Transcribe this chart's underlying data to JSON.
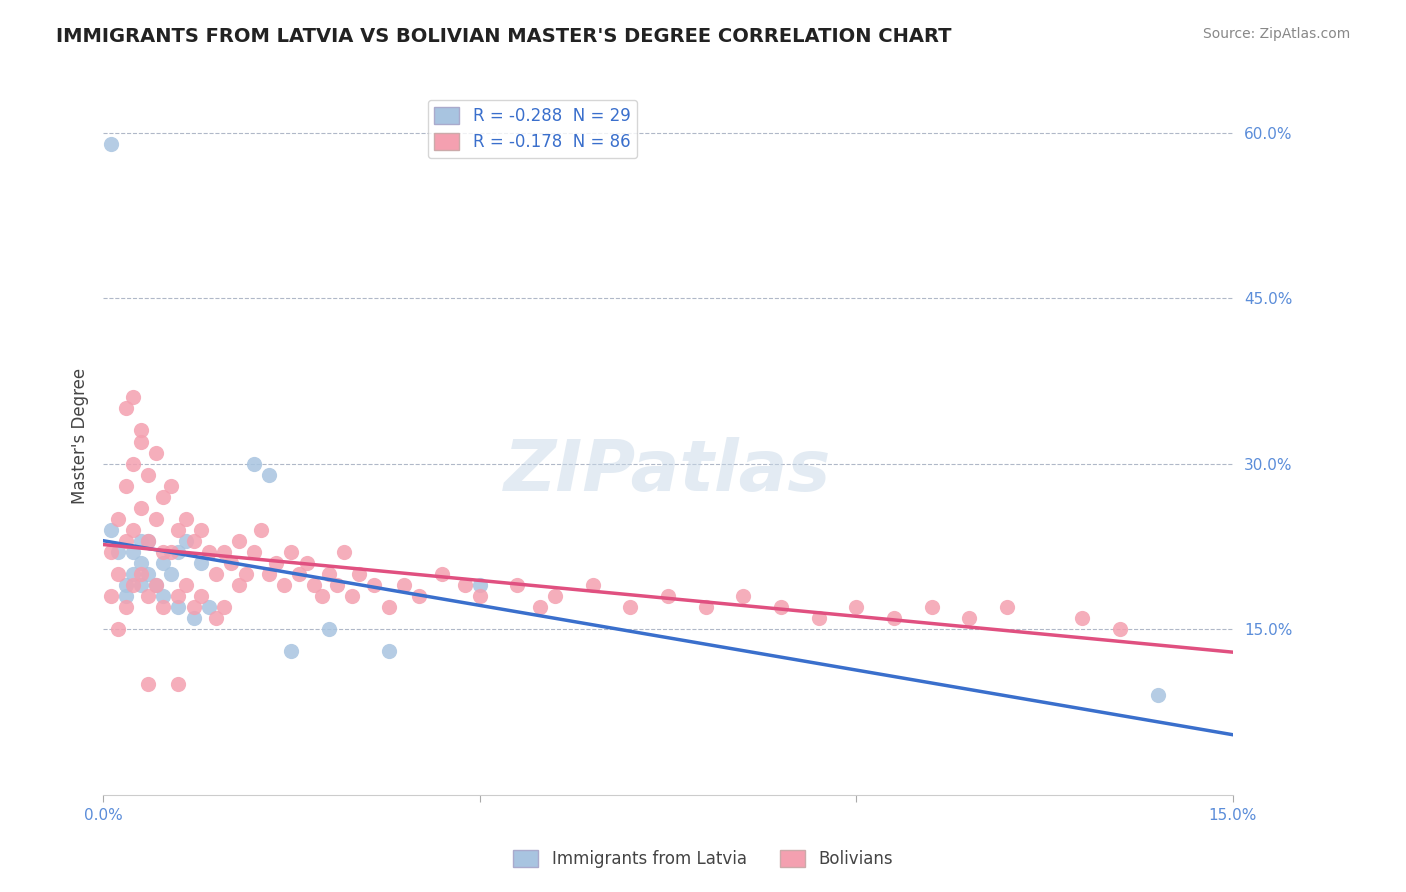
{
  "title": "IMMIGRANTS FROM LATVIA VS BOLIVIAN MASTER'S DEGREE CORRELATION CHART",
  "source_text": "Source: ZipAtlas.com",
  "xlabel_bottom": "",
  "ylabel_left": "Master's Degree",
  "x_min": 0.0,
  "x_max": 0.15,
  "y_min": 0.0,
  "y_max": 0.65,
  "x_ticks": [
    0.0,
    0.05,
    0.1,
    0.15
  ],
  "x_tick_labels": [
    "0.0%",
    "",
    "",
    "15.0%"
  ],
  "y_ticks_right": [
    0.15,
    0.3,
    0.45,
    0.6
  ],
  "y_tick_labels_right": [
    "15.0%",
    "30.0%",
    "45.0%",
    "60.0%"
  ],
  "blue_R": -0.288,
  "blue_N": 29,
  "pink_R": -0.178,
  "pink_N": 86,
  "blue_color": "#a8c4e0",
  "pink_color": "#f4a0b0",
  "blue_line_color": "#3a6fcc",
  "pink_line_color": "#e05080",
  "legend_label_blue": "Immigrants from Latvia",
  "legend_label_pink": "Bolivians",
  "watermark": "ZIPatlas",
  "blue_scatter_x": [
    0.001,
    0.002,
    0.003,
    0.003,
    0.004,
    0.004,
    0.005,
    0.005,
    0.005,
    0.006,
    0.006,
    0.007,
    0.008,
    0.008,
    0.009,
    0.01,
    0.01,
    0.011,
    0.012,
    0.013,
    0.014,
    0.02,
    0.022,
    0.025,
    0.03,
    0.038,
    0.05,
    0.14,
    0.001
  ],
  "blue_scatter_y": [
    0.24,
    0.22,
    0.19,
    0.18,
    0.22,
    0.2,
    0.23,
    0.21,
    0.19,
    0.2,
    0.23,
    0.19,
    0.21,
    0.18,
    0.2,
    0.17,
    0.22,
    0.23,
    0.16,
    0.21,
    0.17,
    0.3,
    0.29,
    0.13,
    0.15,
    0.13,
    0.19,
    0.09,
    0.59
  ],
  "pink_scatter_x": [
    0.001,
    0.001,
    0.002,
    0.002,
    0.002,
    0.003,
    0.003,
    0.003,
    0.004,
    0.004,
    0.004,
    0.005,
    0.005,
    0.005,
    0.006,
    0.006,
    0.006,
    0.007,
    0.007,
    0.007,
    0.008,
    0.008,
    0.008,
    0.009,
    0.009,
    0.01,
    0.01,
    0.011,
    0.011,
    0.012,
    0.012,
    0.013,
    0.013,
    0.014,
    0.015,
    0.015,
    0.016,
    0.016,
    0.017,
    0.018,
    0.018,
    0.019,
    0.02,
    0.021,
    0.022,
    0.023,
    0.024,
    0.025,
    0.026,
    0.027,
    0.028,
    0.029,
    0.03,
    0.031,
    0.032,
    0.033,
    0.034,
    0.036,
    0.038,
    0.04,
    0.042,
    0.045,
    0.048,
    0.05,
    0.055,
    0.058,
    0.06,
    0.065,
    0.07,
    0.075,
    0.08,
    0.085,
    0.09,
    0.095,
    0.1,
    0.105,
    0.11,
    0.115,
    0.12,
    0.13,
    0.135,
    0.003,
    0.004,
    0.005,
    0.006,
    0.01
  ],
  "pink_scatter_y": [
    0.22,
    0.18,
    0.25,
    0.2,
    0.15,
    0.28,
    0.23,
    0.17,
    0.3,
    0.24,
    0.19,
    0.32,
    0.26,
    0.2,
    0.29,
    0.23,
    0.18,
    0.31,
    0.25,
    0.19,
    0.27,
    0.22,
    0.17,
    0.28,
    0.22,
    0.24,
    0.18,
    0.25,
    0.19,
    0.23,
    0.17,
    0.24,
    0.18,
    0.22,
    0.2,
    0.16,
    0.22,
    0.17,
    0.21,
    0.19,
    0.23,
    0.2,
    0.22,
    0.24,
    0.2,
    0.21,
    0.19,
    0.22,
    0.2,
    0.21,
    0.19,
    0.18,
    0.2,
    0.19,
    0.22,
    0.18,
    0.2,
    0.19,
    0.17,
    0.19,
    0.18,
    0.2,
    0.19,
    0.18,
    0.19,
    0.17,
    0.18,
    0.19,
    0.17,
    0.18,
    0.17,
    0.18,
    0.17,
    0.16,
    0.17,
    0.16,
    0.17,
    0.16,
    0.17,
    0.16,
    0.15,
    0.35,
    0.36,
    0.33,
    0.1,
    0.1
  ]
}
